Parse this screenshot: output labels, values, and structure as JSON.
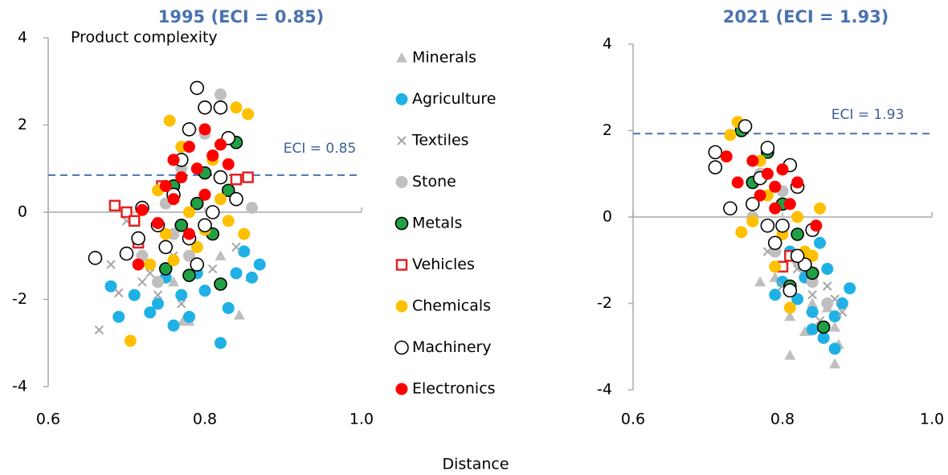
{
  "chart_data": [
    {
      "type": "scatter",
      "title": "1995 (ECI = 0.85)",
      "xlabel": "Distance",
      "ylabel": "Product complexity",
      "xlim": [
        0.6,
        1.0
      ],
      "ylim": [
        -4,
        4
      ],
      "xticks": [
        0.6,
        0.8,
        {
          "value": 1.0,
          "label": "1.0"
        }
      ],
      "yticks": [
        4,
        2,
        0,
        -2,
        -4
      ],
      "ref_line": 0.85,
      "annotation": "ECI = 0.85",
      "series": [
        {
          "name": "Minerals",
          "marker": "triangle",
          "color": "#bfbfbf",
          "x": [
            0.844,
            0.858,
            0.78,
            0.772,
            0.807,
            0.79,
            0.76,
            0.82,
            0.85,
            0.75
          ],
          "y": [
            -2.36,
            -1.49,
            -2.5,
            -2.5,
            -0.4,
            -1.2,
            -1.6,
            -1.0,
            -0.9,
            -0.8
          ]
        },
        {
          "name": "Agriculture",
          "marker": "circle",
          "color": "#1fb1e6",
          "x": [
            0.68,
            0.69,
            0.71,
            0.73,
            0.74,
            0.76,
            0.78,
            0.82,
            0.8,
            0.84,
            0.87,
            0.85,
            0.75,
            0.77,
            0.83,
            0.79,
            0.86
          ],
          "y": [
            -1.7,
            -2.4,
            -1.9,
            -2.3,
            -2.1,
            -2.6,
            -2.4,
            -3.0,
            -1.8,
            -1.4,
            -1.2,
            -0.9,
            -1.5,
            -1.9,
            -2.2,
            -1.4,
            -1.5
          ]
        },
        {
          "name": "Textiles",
          "marker": "cross",
          "color": "#a6a6a6",
          "x": [
            0.665,
            0.68,
            0.69,
            0.72,
            0.74,
            0.77,
            0.79,
            0.81,
            0.76,
            0.7,
            0.73,
            0.84
          ],
          "y": [
            -2.7,
            -1.2,
            -1.85,
            -1.6,
            -1.9,
            -2.1,
            -1.2,
            -1.3,
            -1.0,
            -0.2,
            -1.4,
            -0.8
          ]
        },
        {
          "name": "Stone",
          "marker": "circle",
          "color": "#bfbfbf",
          "x": [
            0.82,
            0.8,
            0.77,
            0.75,
            0.72,
            0.74,
            0.78,
            0.83,
            0.86,
            0.76
          ],
          "y": [
            2.7,
            1.8,
            1.0,
            0.2,
            -1.0,
            -1.6,
            -1.0,
            0.5,
            0.1,
            -0.5
          ]
        },
        {
          "name": "Metals",
          "marker": "ring-fill",
          "color": "#22a045",
          "x": [
            0.82,
            0.78,
            0.75,
            0.81,
            0.79,
            0.84,
            0.8,
            0.77,
            0.83,
            0.76
          ],
          "y": [
            -1.65,
            -1.45,
            -1.3,
            -0.5,
            0.2,
            1.6,
            0.9,
            -0.3,
            0.5,
            0.6
          ]
        },
        {
          "name": "Vehicles",
          "marker": "square",
          "color": "#e32222",
          "x": [
            0.685,
            0.7,
            0.71,
            0.715,
            0.855,
            0.84,
            0.745
          ],
          "y": [
            0.15,
            0.0,
            -0.2,
            -0.7,
            0.8,
            0.75,
            0.6
          ]
        },
        {
          "name": "Chemicals",
          "marker": "circle",
          "color": "#ffc000",
          "x": [
            0.705,
            0.755,
            0.855,
            0.84,
            0.85,
            0.73,
            0.76,
            0.78,
            0.8,
            0.82,
            0.77,
            0.79,
            0.83,
            0.75,
            0.81,
            0.74
          ],
          "y": [
            -2.95,
            2.1,
            2.25,
            2.4,
            -0.5,
            -1.2,
            -1.1,
            0.0,
            -0.4,
            0.3,
            1.5,
            -0.8,
            -0.2,
            -0.5,
            1.2,
            0.5
          ]
        },
        {
          "name": "Machinery",
          "marker": "ring",
          "color": "#000000",
          "x": [
            0.66,
            0.7,
            0.715,
            0.72,
            0.74,
            0.79,
            0.8,
            0.82,
            0.83,
            0.78,
            0.76,
            0.77,
            0.8,
            0.82,
            0.75,
            0.79,
            0.81,
            0.84,
            0.78
          ],
          "y": [
            -1.05,
            -0.95,
            -0.6,
            0.1,
            -0.3,
            2.85,
            2.4,
            2.4,
            1.7,
            1.9,
            0.4,
            1.2,
            -0.3,
            0.8,
            -0.8,
            -1.2,
            0.0,
            0.3,
            -0.6
          ]
        },
        {
          "name": "Electronics",
          "marker": "circle",
          "color": "#ff0000",
          "x": [
            0.715,
            0.72,
            0.74,
            0.76,
            0.78,
            0.76,
            0.78,
            0.8,
            0.82,
            0.79,
            0.81,
            0.77,
            0.8,
            0.83,
            0.75
          ],
          "y": [
            -1.2,
            0.05,
            -0.25,
            0.3,
            -0.5,
            1.2,
            1.5,
            1.9,
            1.55,
            1.0,
            1.3,
            0.8,
            0.4,
            1.1,
            0.6
          ]
        }
      ]
    },
    {
      "type": "scatter",
      "title": "2021 (ECI = 1.93)",
      "xlim": [
        0.6,
        1.0
      ],
      "ylim": [
        -4,
        4
      ],
      "xticks": [
        0.6,
        0.8,
        {
          "value": 1.0,
          "label": "1.0"
        }
      ],
      "yticks": [
        4,
        2,
        0,
        -2,
        -4
      ],
      "ref_line": 1.93,
      "annotation": "ECI = 1.93",
      "series": [
        {
          "x": [
            0.81,
            0.87,
            0.875,
            0.87,
            0.83,
            0.81,
            0.79,
            0.84,
            0.77,
            0.86
          ],
          "y": [
            -3.2,
            -3.4,
            -2.95,
            -2.55,
            -2.65,
            -2.3,
            -1.4,
            -2.0,
            -1.5,
            -2.1
          ]
        },
        {
          "x": [
            0.89,
            0.87,
            0.855,
            0.84,
            0.82,
            0.8,
            0.86,
            0.85,
            0.83,
            0.79,
            0.87,
            0.81,
            0.84,
            0.88
          ],
          "y": [
            -1.65,
            -3.05,
            -2.8,
            -2.2,
            -1.9,
            -1.5,
            -1.2,
            -0.6,
            -1.4,
            -1.8,
            -2.3,
            -0.8,
            -2.6,
            -2.0
          ]
        },
        {
          "x": [
            0.88,
            0.86,
            0.84,
            0.85,
            0.82,
            0.78,
            0.8,
            0.87
          ],
          "y": [
            -2.2,
            -1.6,
            -1.8,
            -2.4,
            -1.2,
            -0.8,
            -1.6,
            -1.9
          ]
        },
        {
          "x": [
            0.76,
            0.79,
            0.82,
            0.84,
            0.8,
            0.77,
            0.86
          ],
          "y": [
            0.0,
            -0.8,
            -1.0,
            -1.5,
            0.6,
            1.0,
            -2.0
          ]
        },
        {
          "x": [
            0.855,
            0.81,
            0.745,
            0.78,
            0.82,
            0.8,
            0.84,
            0.76
          ],
          "y": [
            -2.55,
            -1.6,
            2.0,
            1.5,
            -0.4,
            0.3,
            -1.3,
            0.8
          ]
        },
        {
          "x": [
            0.8,
            0.81
          ],
          "y": [
            -1.15,
            -0.9
          ]
        },
        {
          "x": [
            0.74,
            0.73,
            0.745,
            0.79,
            0.81,
            0.85,
            0.78,
            0.8,
            0.83,
            0.77,
            0.82,
            0.84,
            0.76
          ],
          "y": [
            2.2,
            1.9,
            -0.35,
            -1.15,
            -2.1,
            0.2,
            0.5,
            -0.4,
            -0.8,
            1.3,
            0.0,
            -0.9,
            -0.1
          ]
        },
        {
          "x": [
            0.71,
            0.71,
            0.75,
            0.73,
            0.76,
            0.78,
            0.81,
            0.82,
            0.8,
            0.79,
            0.83,
            0.81,
            0.77,
            0.84,
            0.82,
            0.78
          ],
          "y": [
            1.5,
            1.15,
            2.1,
            0.2,
            0.3,
            1.6,
            1.2,
            0.7,
            -0.2,
            -0.6,
            -1.1,
            -1.7,
            0.9,
            -0.3,
            -0.9,
            -0.2
          ]
        },
        {
          "x": [
            0.725,
            0.74,
            0.76,
            0.77,
            0.78,
            0.79,
            0.8,
            0.81,
            0.82,
            0.845,
            0.79
          ],
          "y": [
            1.4,
            0.8,
            1.3,
            0.5,
            1.0,
            0.7,
            1.1,
            0.3,
            0.8,
            -0.2,
            0.2
          ]
        }
      ]
    }
  ]
}
